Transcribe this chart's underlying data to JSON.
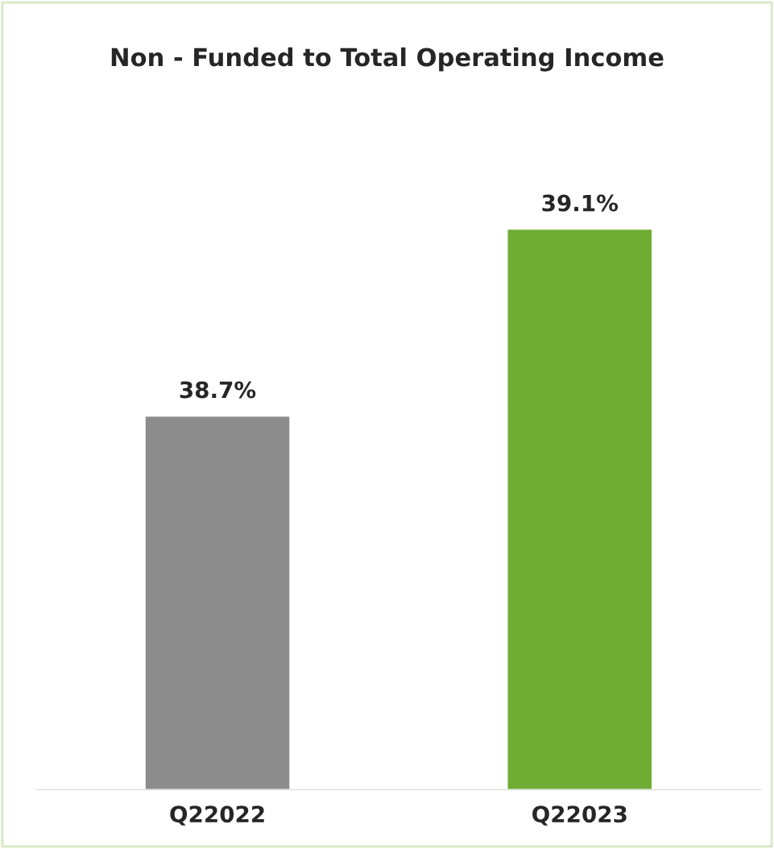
{
  "chart_data": {
    "type": "bar",
    "title": "Non - Funded to Total Operating Income",
    "categories": [
      "Q22022",
      "Q22023"
    ],
    "values": [
      38.7,
      39.1
    ],
    "value_labels": [
      "38.7%",
      "39.1%"
    ],
    "colors": [
      "#8c8c8c",
      "#6fac34"
    ],
    "ylim": [
      37.9,
      39.1
    ],
    "tick_labels": "x",
    "grid": false,
    "legend": false
  }
}
